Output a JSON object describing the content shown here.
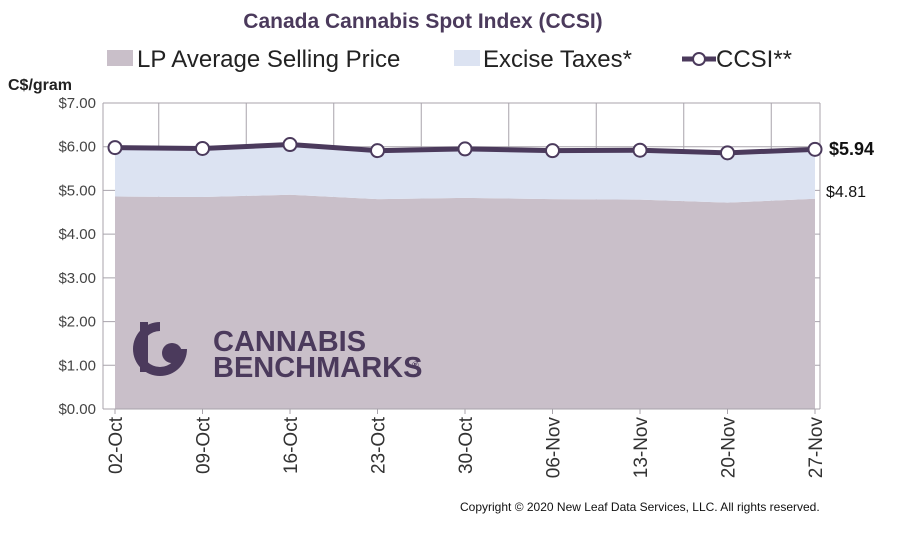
{
  "chart_data": {
    "type": "area",
    "title": "Canada Cannabis Spot Index (CCSI)",
    "ylabel": "C$/gram",
    "ylim": [
      0,
      7
    ],
    "yticks": [
      "$0.00",
      "$1.00",
      "$2.00",
      "$3.00",
      "$4.00",
      "$5.00",
      "$6.00",
      "$7.00"
    ],
    "ytick_values": [
      0,
      1,
      2,
      3,
      4,
      5,
      6,
      7
    ],
    "categories": [
      "02-Oct",
      "09-Oct",
      "16-Oct",
      "23-Oct",
      "30-Oct",
      "06-Nov",
      "13-Nov",
      "20-Nov",
      "27-Nov"
    ],
    "grid": true,
    "legend_placement": "top",
    "series": [
      {
        "name": "LP Average Selling Price",
        "kind": "area",
        "color": "#c9bfc9",
        "values": [
          4.86,
          4.85,
          4.9,
          4.8,
          4.83,
          4.8,
          4.79,
          4.72,
          4.81
        ]
      },
      {
        "name": "Excise Taxes*",
        "kind": "area",
        "color": "#dce3f2",
        "values": [
          1.12,
          1.11,
          1.15,
          1.11,
          1.12,
          1.11,
          1.13,
          1.14,
          1.13
        ]
      },
      {
        "name": "CCSI**",
        "kind": "line",
        "color": "#4b3a5c",
        "values": [
          5.98,
          5.96,
          6.05,
          5.91,
          5.95,
          5.91,
          5.92,
          5.86,
          5.94
        ]
      }
    ],
    "last_labels": {
      "ccsi": "$5.94",
      "lp": "$4.81"
    }
  },
  "logo": {
    "line1": "CANNABIS",
    "line2": "BENCHMARKS",
    "mark": "®"
  },
  "copyright": "Copyright © 2020 New Leaf Data Services, LLC. All rights reserved.",
  "colors": {
    "title": "#4b3a5c",
    "grid": "#a8a3ab",
    "plot_bg": "#ffffff"
  }
}
